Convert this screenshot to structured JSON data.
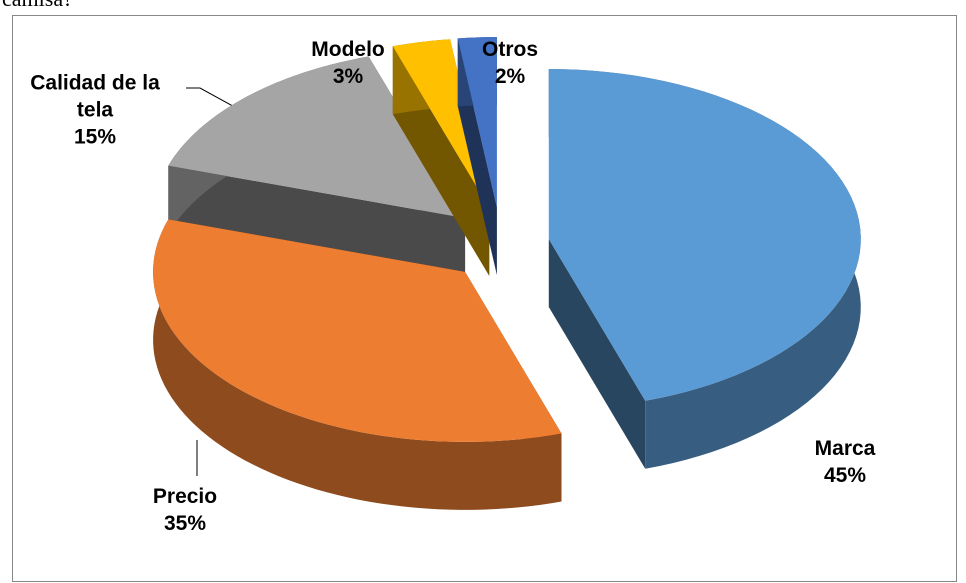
{
  "header_text": "camisa?",
  "chart_data": {
    "type": "pie3d",
    "categories": [
      "Marca",
      "Precio",
      "Calidad de la tela",
      "Modelo",
      "Otros"
    ],
    "values": [
      45,
      35,
      15,
      3,
      2
    ],
    "value_labels": [
      "45%",
      "35%",
      "15%",
      "3%",
      "2%"
    ],
    "colors": [
      "#5b9bd5",
      "#ed7d31",
      "#a5a5a5",
      "#ffc000",
      "#4472c4"
    ]
  }
}
